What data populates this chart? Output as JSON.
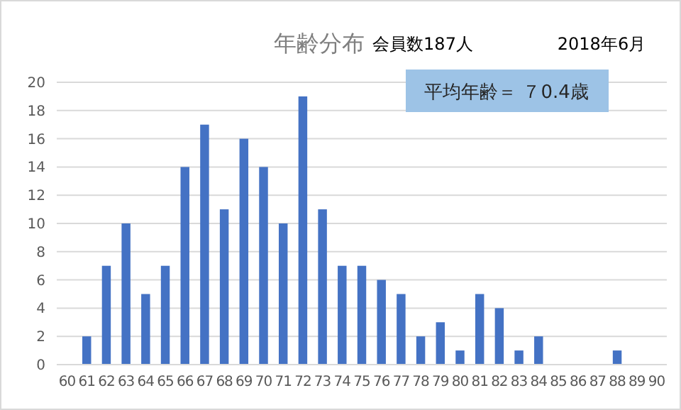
{
  "chart_data": {
    "type": "bar",
    "title": "年齢分布",
    "categories": [
      "60",
      "61",
      "62",
      "63",
      "64",
      "65",
      "66",
      "67",
      "68",
      "69",
      "70",
      "71",
      "72",
      "73",
      "74",
      "75",
      "76",
      "77",
      "78",
      "79",
      "80",
      "81",
      "82",
      "83",
      "84",
      "85",
      "86",
      "87",
      "88",
      "89",
      "90"
    ],
    "values": [
      0,
      2,
      7,
      10,
      5,
      7,
      14,
      17,
      11,
      16,
      14,
      10,
      19,
      11,
      7,
      7,
      6,
      5,
      2,
      3,
      1,
      5,
      4,
      1,
      2,
      0,
      0,
      0,
      1,
      0,
      0
    ],
    "color": "#4472c4",
    "ylim": [
      0,
      20
    ],
    "yticks": [
      0,
      2,
      4,
      6,
      8,
      10,
      12,
      14,
      16,
      18,
      20
    ],
    "grid": "y",
    "annotations": [
      "会員数187人",
      "2018年6月",
      "平均年齢＝ ７0.4歳"
    ]
  }
}
